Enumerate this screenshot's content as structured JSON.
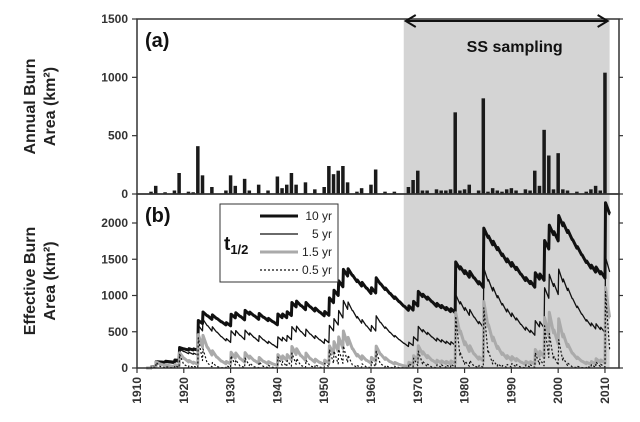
{
  "figure": {
    "annotation": "SS sampling",
    "shaded_years": [
      1967,
      2011
    ],
    "colors": {
      "shade": "#d4d4d4",
      "bar": "#1a1a1a",
      "axis": "#333333"
    }
  },
  "chart_data": [
    {
      "type": "bar",
      "panel_label": "(a)",
      "ylabel_line1": "Annual Burn",
      "ylabel_line2": "Area (km²)",
      "xlim": [
        1910,
        2013
      ],
      "ylim": [
        0,
        1500
      ],
      "yticks": [
        "0",
        "500",
        "1000",
        "1500"
      ],
      "ytick_values": [
        0,
        500,
        1000,
        1500
      ],
      "x": [
        1913,
        1914,
        1916,
        1918,
        1919,
        1921,
        1922,
        1923,
        1924,
        1926,
        1929,
        1930,
        1931,
        1933,
        1934,
        1936,
        1938,
        1940,
        1941,
        1942,
        1943,
        1944,
        1946,
        1948,
        1950,
        1951,
        1952,
        1953,
        1954,
        1955,
        1957,
        1958,
        1960,
        1961,
        1963,
        1965,
        1968,
        1969,
        1970,
        1971,
        1972,
        1974,
        1975,
        1976,
        1977,
        1978,
        1979,
        1980,
        1981,
        1983,
        1984,
        1985,
        1986,
        1987,
        1988,
        1989,
        1990,
        1991,
        1993,
        1994,
        1995,
        1996,
        1997,
        1998,
        1999,
        2000,
        2001,
        2002,
        2004,
        2006,
        2007,
        2008,
        2009,
        2010
      ],
      "values": [
        20,
        70,
        15,
        30,
        180,
        20,
        15,
        410,
        160,
        60,
        30,
        160,
        70,
        130,
        30,
        80,
        30,
        150,
        50,
        80,
        180,
        80,
        100,
        40,
        60,
        240,
        170,
        200,
        240,
        100,
        20,
        50,
        80,
        210,
        20,
        20,
        60,
        120,
        200,
        30,
        30,
        40,
        30,
        30,
        40,
        700,
        30,
        40,
        80,
        30,
        820,
        20,
        50,
        30,
        20,
        40,
        50,
        30,
        40,
        30,
        200,
        70,
        550,
        330,
        40,
        350,
        40,
        30,
        20,
        20,
        40,
        70,
        30,
        1040
      ]
    },
    {
      "type": "line",
      "panel_label": "(b)",
      "ylabel_line1": "Effective Burn",
      "ylabel_line2": "Area (km²)",
      "xlim": [
        1910,
        2013
      ],
      "ylim": [
        0,
        2400
      ],
      "yticks": [
        "0",
        "500",
        "1000",
        "1500",
        "2000"
      ],
      "ytick_values": [
        0,
        500,
        1000,
        1500,
        2000
      ],
      "xticks": [
        "1910",
        "1920",
        "1930",
        "1940",
        "1950",
        "1960",
        "1970",
        "1980",
        "1990",
        "2000",
        "2010"
      ],
      "xtick_values": [
        1910,
        1920,
        1930,
        1940,
        1950,
        1960,
        1970,
        1980,
        1990,
        2000,
        2010
      ],
      "legend_title": "t",
      "legend_title_sub": "1/2",
      "series": [
        {
          "name": "10 yr",
          "color": "#111111",
          "width": 3,
          "dash": "",
          "half_life": 10
        },
        {
          "name": "5 yr",
          "color": "#111111",
          "width": 1.3,
          "dash": "",
          "half_life": 5
        },
        {
          "name": "1.5 yr",
          "color": "#aaaaaa",
          "width": 3,
          "dash": "",
          "half_life": 1.5
        },
        {
          "name": "0.5 yr",
          "color": "#111111",
          "width": 1.2,
          "dash": "2,2",
          "half_life": 0.5
        }
      ]
    }
  ]
}
